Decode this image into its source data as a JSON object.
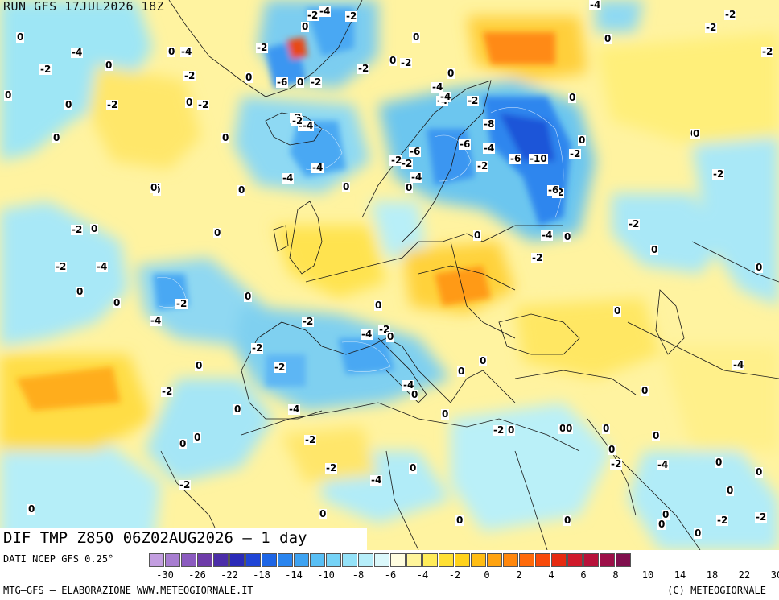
{
  "header": {
    "run_label": "RUN GFS 17JUL2026 18Z"
  },
  "map": {
    "title": "DIF TMP Z850 06Z02AUG2026 – 1 day",
    "region": "Europe / North Atlantic / North Africa",
    "value_labels": [
      "-4",
      "-2",
      "-4",
      "-4",
      "0",
      "0",
      "-2",
      "-2",
      "-4",
      "0",
      "-2",
      "0",
      "0",
      "0",
      "-2",
      "-2",
      "0",
      "-2",
      "0",
      "-4",
      "0",
      "0",
      "-2",
      "0",
      "-4",
      "-2",
      "-2",
      "-2",
      "0",
      "-2",
      "-6",
      "0",
      "-2",
      "-2",
      "0",
      "0",
      "-4",
      "-4",
      "-2",
      "0",
      "-2",
      "-2",
      "0",
      "-2",
      "-4",
      "0",
      "0",
      "-4",
      "-4",
      "-8",
      "0",
      "-6",
      "-6",
      "-4",
      "-2",
      "-6",
      "-10",
      "0",
      "-2",
      "-2",
      "0",
      "0",
      "-2",
      "-4",
      "0",
      "0",
      "-6",
      "-2",
      "0",
      "0",
      "-4",
      "0",
      "-2",
      "0",
      "-2",
      "0",
      "-2",
      "-4",
      "-2",
      "0",
      "0",
      "0",
      "0",
      "-4",
      "0",
      "-2",
      "-2",
      "0",
      "-4",
      "-4",
      "-2",
      "-2",
      "0",
      "-2",
      "-4",
      "0",
      "0",
      "0",
      "-2",
      "0",
      "0",
      "-4",
      "-2",
      "0",
      "0",
      "0",
      "0",
      "0",
      "-2",
      "0",
      "-4",
      "0",
      "-2",
      "-4",
      "-2",
      "0",
      "0",
      "0",
      "0",
      "0",
      "0",
      "0",
      "-2",
      "0",
      "0",
      "0",
      "0",
      "-2",
      "0",
      "0",
      "0",
      "-2",
      "0",
      "0",
      "0",
      "0",
      "0",
      "-2",
      "-2",
      "-2",
      "0",
      "0"
    ]
  },
  "legend": {
    "source": "DATI NCEP GFS 0.25°",
    "tick_labels": [
      "-30",
      "-26",
      "-22",
      "-18",
      "-14",
      "-10",
      "-8",
      "-6",
      "-4",
      "-2",
      "0",
      "2",
      "4",
      "6",
      "8",
      "10",
      "14",
      "18",
      "22",
      "30"
    ],
    "colors": [
      "#c39ee0",
      "#a77dd0",
      "#8b5bbf",
      "#6e3ca9",
      "#4b2ea8",
      "#2a2ab8",
      "#1f45d6",
      "#1e66e6",
      "#2a85ef",
      "#3ea3f2",
      "#58bff5",
      "#76d3f7",
      "#94e2f8",
      "#b6eefa",
      "#dbf8fb",
      "#fffde0",
      "#fff59a",
      "#ffec5a",
      "#ffe033",
      "#ffd21a",
      "#ffbd14",
      "#ffa30f",
      "#ff870c",
      "#ff6a0a",
      "#f84a0a",
      "#e62a10",
      "#d01a2a",
      "#b8123a",
      "#9c0f48",
      "#80104e"
    ]
  },
  "footer": {
    "credit_left": "MTG–GFS – ELABORAZIONE WWW.METEOGIORNALE.IT",
    "credit_right": "(C) METEOGIORNALE"
  }
}
